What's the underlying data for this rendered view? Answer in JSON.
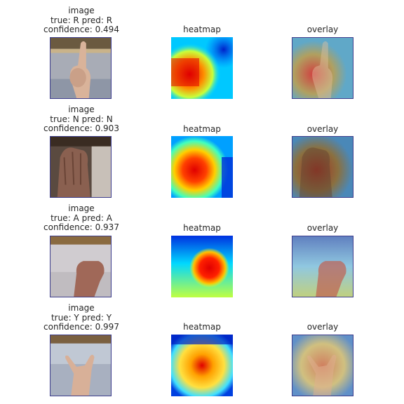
{
  "rows": [
    {
      "image_title": "image",
      "label_line": "true: R pred: R",
      "confidence_line": "confidence: 0.494",
      "heatmap_title": "heatmap",
      "overlay_title": "overlay"
    },
    {
      "image_title": "image",
      "label_line": "true: N pred: N",
      "confidence_line": "confidence: 0.903",
      "heatmap_title": "heatmap",
      "overlay_title": "overlay"
    },
    {
      "image_title": "image",
      "label_line": "true: A pred: A",
      "confidence_line": "confidence: 0.937",
      "heatmap_title": "heatmap",
      "overlay_title": "overlay"
    },
    {
      "image_title": "image",
      "label_line": "true: Y pred: Y",
      "confidence_line": "confidence: 0.997",
      "heatmap_title": "heatmap",
      "overlay_title": "overlay"
    }
  ],
  "colors": {
    "text": "#262626",
    "panel_border": "#3d3d8c",
    "heat_low": "#0000c8",
    "heat_mid": "#00e0ff",
    "heat_high": "#e00000"
  }
}
